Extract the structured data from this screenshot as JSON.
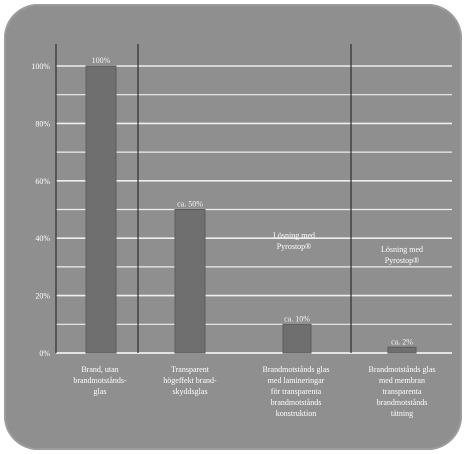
{
  "colors": {
    "frame": "#8f8f8f",
    "grid": "#ffffff",
    "bar": "#6f6f6f",
    "bar_edge": "#5c5c5c",
    "text": "#ffffff"
  },
  "chart_data": {
    "type": "bar",
    "title": "",
    "xlabel": "",
    "ylabel": "",
    "ylim": [
      0,
      100
    ],
    "y_ticks": [
      {
        "value": 0,
        "label": "0%"
      },
      {
        "value": 20,
        "label": "20%"
      },
      {
        "value": 40,
        "label": "40%"
      },
      {
        "value": 60,
        "label": "60%"
      },
      {
        "value": 80,
        "label": "80%"
      },
      {
        "value": 100,
        "label": "100%"
      }
    ],
    "minor_gridlines_every": 10,
    "categories": [
      [
        "Brand, utan",
        "brandmotstånds-",
        "glas"
      ],
      [
        "Transparent",
        "högeffekt brand-",
        "skyddsglas"
      ],
      [
        "Brandmotstånds glas",
        "med lamineringar",
        "för transparenta",
        "brandmotstånds",
        "konstruktion"
      ],
      [
        "Brandmotstånds glas",
        "med membran",
        "transparenta",
        "brandmotstånds",
        "tätning"
      ]
    ],
    "values": [
      100,
      50,
      10,
      2
    ],
    "data_labels": [
      "100%",
      "ca. 50%",
      "ca. 10%",
      "ca. 2%"
    ],
    "annotations": [
      {
        "lines": [
          "Lösning med",
          "Pyrostop®"
        ]
      },
      {
        "lines": [
          "Lösning med",
          "Pyrostop®"
        ]
      }
    ],
    "grid": true,
    "legend": "none"
  }
}
